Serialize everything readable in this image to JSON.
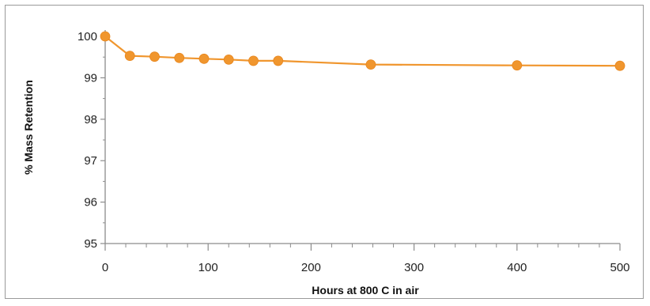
{
  "chart_data": {
    "type": "line",
    "title": "",
    "xlabel": "Hours at 800 C in air",
    "ylabel": "% Mass Retention",
    "xlim": [
      0,
      500
    ],
    "ylim": [
      95,
      100
    ],
    "xticks": [
      0,
      100,
      200,
      300,
      400,
      500
    ],
    "yticks": [
      95,
      96,
      97,
      98,
      99,
      100
    ],
    "grid": false,
    "legend": "none",
    "series": [
      {
        "color": "#f0962e",
        "x": [
          0,
          24,
          48,
          72,
          96,
          120,
          144,
          168,
          258,
          400,
          500
        ],
        "y": [
          100.0,
          99.53,
          99.51,
          99.48,
          99.46,
          99.44,
          99.41,
          99.41,
          99.32,
          99.3,
          99.29
        ]
      }
    ]
  }
}
